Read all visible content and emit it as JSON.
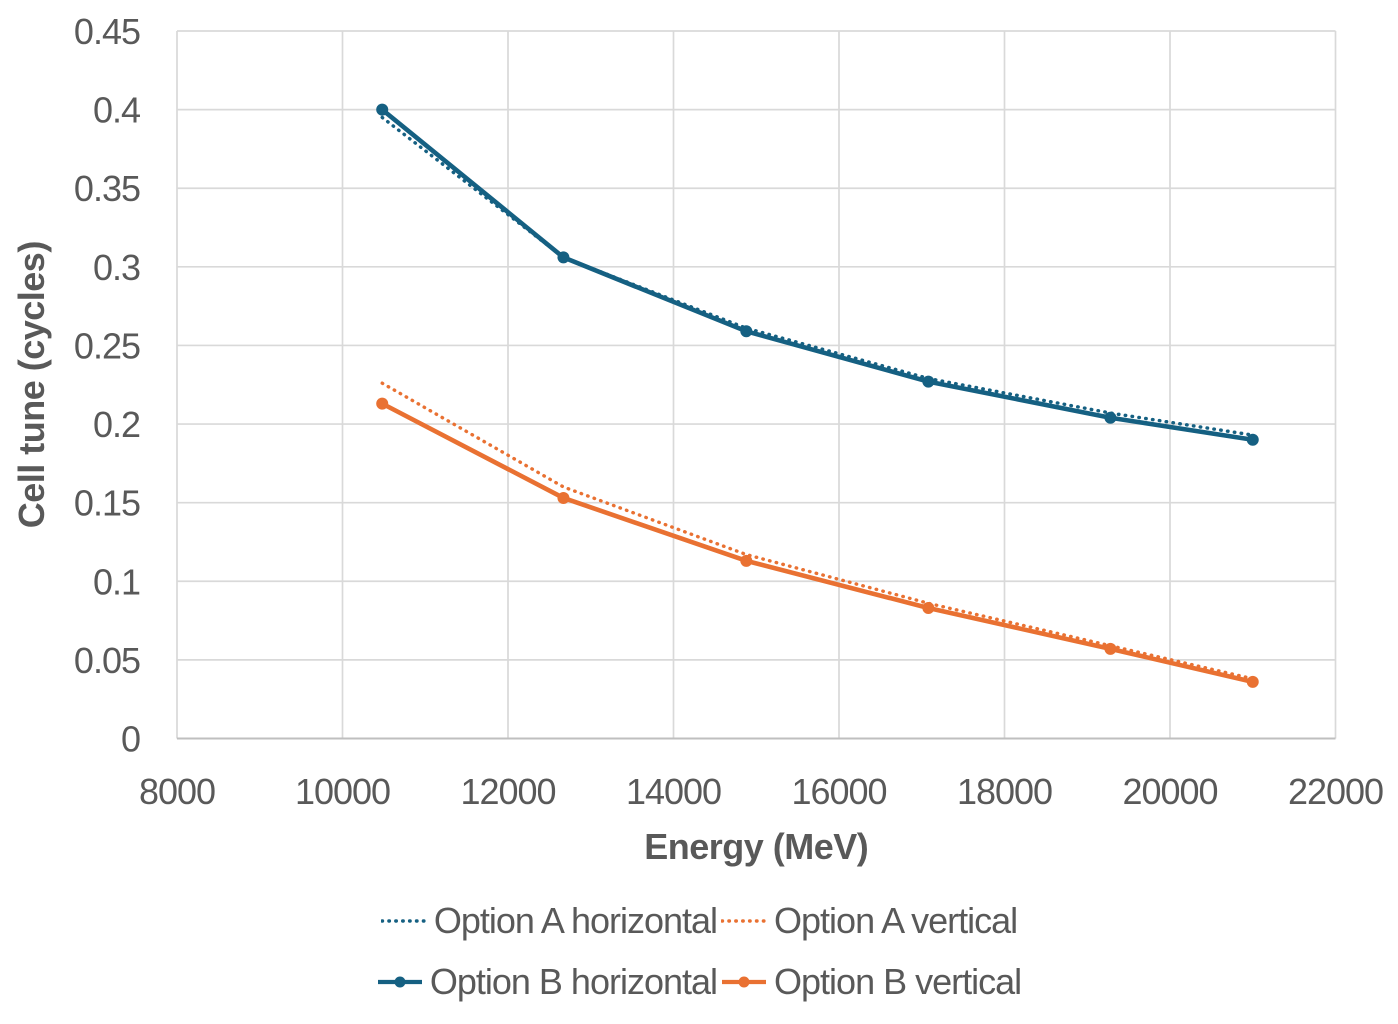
{
  "chart_data": {
    "type": "line",
    "title": "",
    "xlabel": "Energy (MeV)",
    "ylabel": "Cell tune (cycles)",
    "xlim": [
      8000,
      22000
    ],
    "ylim": [
      0,
      0.45
    ],
    "xticks": [
      8000,
      10000,
      12000,
      14000,
      16000,
      18000,
      20000,
      22000
    ],
    "yticks": [
      0,
      0.05,
      0.1,
      0.15,
      0.2,
      0.25,
      0.3,
      0.35,
      0.4,
      0.45
    ],
    "grid": true,
    "legend_position": "bottom",
    "x": [
      10480,
      12670,
      14880,
      17080,
      19280,
      21000
    ],
    "series": [
      {
        "name": "Option A horizontal",
        "color": "#156082",
        "line_style": "dotted",
        "marker": false,
        "values": [
          0.395,
          0.306,
          0.261,
          0.229,
          0.207,
          0.193
        ]
      },
      {
        "name": "Option A vertical",
        "color": "#E97132",
        "line_style": "dotted",
        "marker": false,
        "values": [
          0.226,
          0.16,
          0.117,
          0.086,
          0.059,
          0.038
        ]
      },
      {
        "name": "Option B horizontal",
        "color": "#156082",
        "line_style": "solid",
        "marker": true,
        "values": [
          0.4,
          0.306,
          0.259,
          0.227,
          0.204,
          0.19
        ]
      },
      {
        "name": "Option B vertical",
        "color": "#E97132",
        "line_style": "solid",
        "marker": true,
        "values": [
          0.213,
          0.153,
          0.113,
          0.083,
          0.057,
          0.036
        ]
      }
    ],
    "legend_rows": [
      [
        0,
        1
      ],
      [
        2,
        3
      ]
    ]
  },
  "colors": {
    "text": "#595959",
    "gridline": "#D9D9D9",
    "axis_line": "#BFBFBF",
    "background": "#FFFFFF",
    "accent_blue": "#156082",
    "accent_orange": "#E97132"
  }
}
